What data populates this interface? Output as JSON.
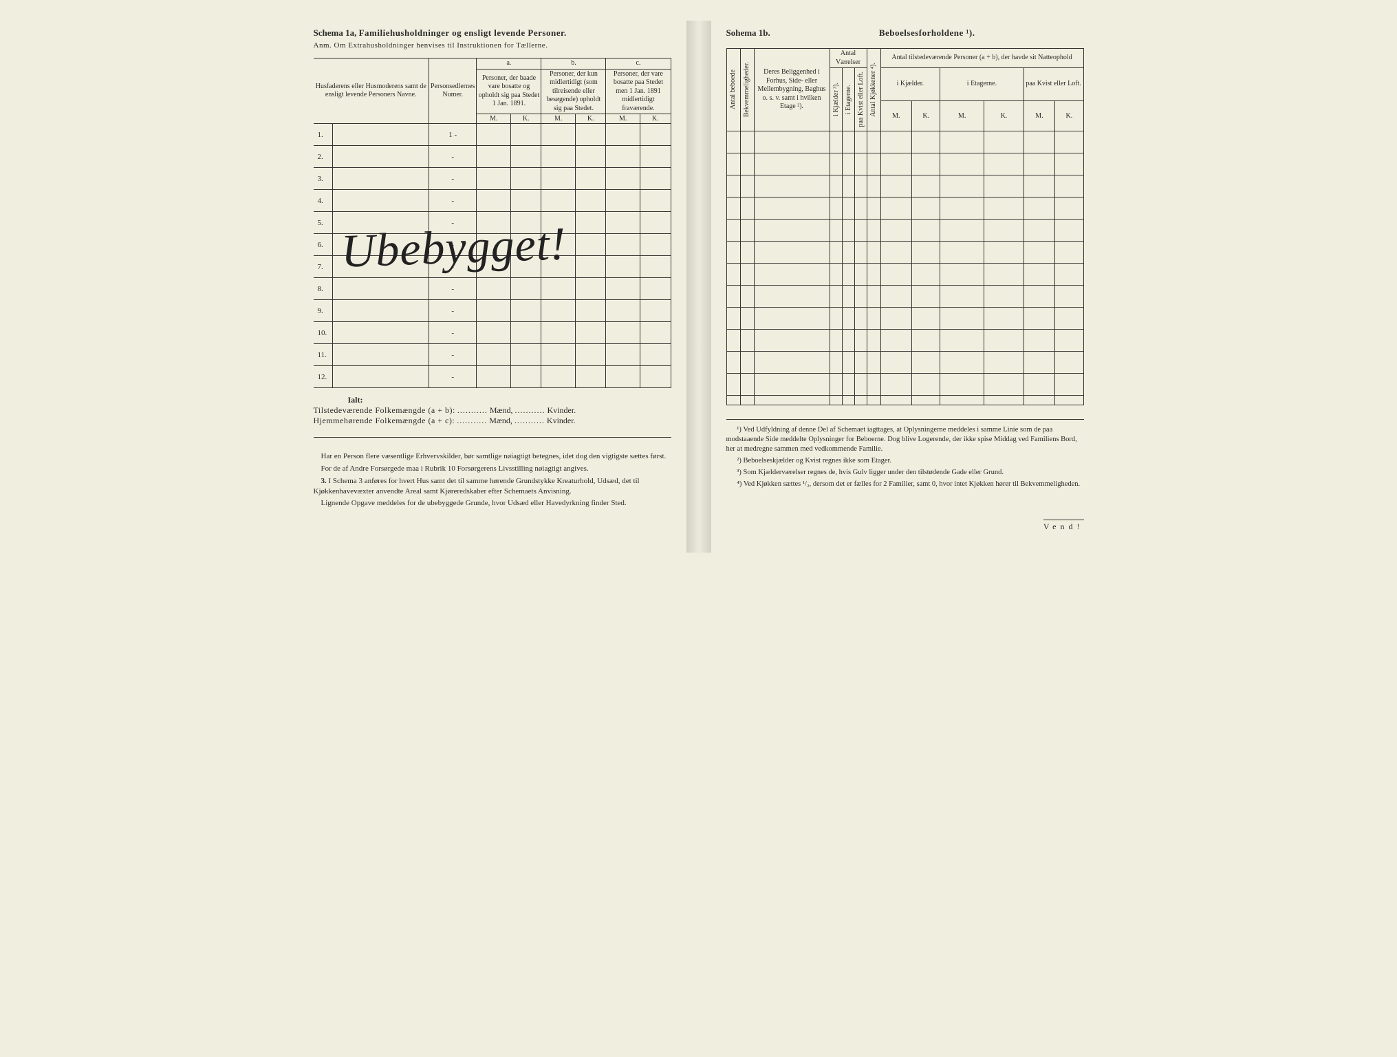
{
  "left": {
    "title_prefix": "Schema 1a,",
    "title": "Familiehusholdninger og ensligt levende Personer.",
    "subtitle": "Anm.  Om Extrahusholdninger henvises til Instruktionen for Tællerne.",
    "col_names": "Husfaderens eller Husmoderens samt de ensligt levende Personers Navne.",
    "col_number": "Personsedlernes Numer.",
    "grp_a": "a.",
    "grp_b": "b.",
    "grp_c": "c.",
    "hdr_a": "Personer, der baade vare bosatte og opholdt sig paa Stedet 1 Jan. 1891.",
    "hdr_b": "Personer, der kun midlertidigt (som tilreisende eller besøgende) opholdt sig paa Stedet.",
    "hdr_c": "Personer, der vare bosatte paa Stedet men 1 Jan. 1891 midlertidigt fraværende.",
    "m": "M.",
    "k": "K.",
    "rows": [
      "1.",
      "2.",
      "3.",
      "4.",
      "5.",
      "6.",
      "7.",
      "8.",
      "9.",
      "10.",
      "11.",
      "12."
    ],
    "ialt": "Ialt:",
    "sum1_a": "Tilstedeværende Folkemængde (a + b):",
    "sum2_a": "Hjemmehørende Folkemængde (a + c):",
    "maend": "Mænd,",
    "kvinder": "Kvinder.",
    "note1": "Har en Person flere væsentlige Erhvervskilder, bør samtlige nøiagtigt betegnes, idet dog den vigtigste sættes først.",
    "note2": "For de af Andre Forsørgede maa i Rubrik 10 Forsørgerens Livsstilling nøiagtigt angives.",
    "note3_num": "3.",
    "note3": "I Schema 3 anføres for hvert Hus samt det til samme hørende Grundstykke Kreaturhold, Udsæd, det til Kjøkkenhavevæxter anvendte Areal samt Kjøreredskaber efter Schemaets Anvisning.",
    "note4": "Lignende Opgave meddeles for de ubebyggede Grunde, hvor Udsæd eller Havedyrkning finder Sted.",
    "handwriting": "Ubebygget!"
  },
  "right": {
    "title_prefix": "Sohema 1b.",
    "title": "Beboelsesforholdene ¹).",
    "v_beboede": "Antal beboede",
    "v_bekvem": "Bekvemmeligheder.",
    "col_beligg": "Deres Beliggenhed i Forhus, Side- eller Mellembygning, Baghus o. s. v. samt i hvilken Etage ²).",
    "grp_vaer": "Antal Værelser",
    "v_kjaelder": "i Kjælder ³).",
    "v_etagerne": "i Etagerne.",
    "v_kvist": "paa Kvist eller Loft.",
    "v_kjokken": "Antal Kjøkkener ⁴).",
    "grp_tilstede": "Antal tilstedeværende Personer (a + b), der havde sit Natteophold",
    "sub_kjaelder": "i Kjælder.",
    "sub_etagerne": "i Etagerne.",
    "sub_kvist": "paa Kvist eller Loft.",
    "m": "M.",
    "k": "K.",
    "fn1": "¹) Ved Udfyldning af denne Del af Schemaet iagttages, at Oplysningerne meddeles i samme Linie som de paa modstaaende Side meddelte Oplysninger for Beboerne. Dog blive Logerende, der ikke spise Middag ved Familiens Bord, her at medregne sammen med vedkommende Familie.",
    "fn2": "²) Beboelseskjælder og Kvist regnes ikke som Etager.",
    "fn3": "³) Som Kjælderværelser regnes de, hvis Gulv ligger under den tilstødende Gade eller Grund.",
    "fn4": "⁴) Ved Kjøkken sættes ¹/₂, dersom det er fælles for 2 Familier, samt 0, hvor intet Kjøkken hører til Bekvemmeligheden.",
    "vend": "Vend!"
  }
}
